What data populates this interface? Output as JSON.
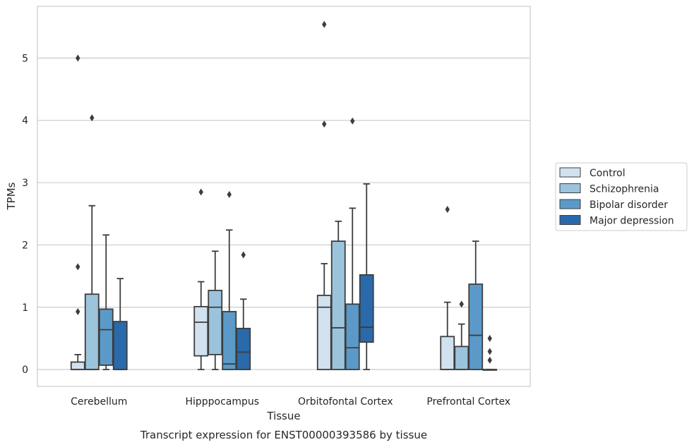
{
  "chart_data": {
    "type": "box",
    "xlabel": "Tissue",
    "ylabel": "TPMs",
    "caption": "Transcript expression for ENST00000393586 by tissue",
    "ylim": [
      -0.27,
      5.83
    ],
    "yticks": [
      0,
      1,
      2,
      3,
      4,
      5
    ],
    "grid": true,
    "legend_position": "right",
    "categories": [
      "Cerebellum",
      "Hipppocampus",
      "Orbitofontal Cortex",
      "Prefrontal Cortex"
    ],
    "series": [
      {
        "name": "Control",
        "color": "#d2e1f0",
        "boxes": [
          {
            "min": 0,
            "q1": 0,
            "median": 0,
            "q3": 0.12,
            "max": 0.24,
            "outliers": [
              0.93,
              1.65,
              5.0
            ]
          },
          {
            "min": 0,
            "q1": 0.22,
            "median": 0.76,
            "q3": 1.01,
            "max": 1.41,
            "outliers": [
              2.85
            ]
          },
          {
            "min": 0,
            "q1": 0,
            "median": 1.0,
            "q3": 1.19,
            "max": 1.7,
            "outliers": [
              3.94,
              5.54
            ]
          },
          {
            "min": 0,
            "q1": 0,
            "median": 0,
            "q3": 0.53,
            "max": 1.08,
            "outliers": [
              2.57
            ]
          }
        ]
      },
      {
        "name": "Schizophrenia",
        "color": "#9cc3dc",
        "boxes": [
          {
            "min": 0,
            "q1": 0,
            "median": 0,
            "q3": 1.21,
            "max": 2.63,
            "outliers": [
              4.04
            ]
          },
          {
            "min": 0,
            "q1": 0.24,
            "median": 1.0,
            "q3": 1.27,
            "max": 1.9,
            "outliers": []
          },
          {
            "min": 0,
            "q1": 0,
            "median": 0.67,
            "q3": 2.06,
            "max": 2.38,
            "outliers": []
          },
          {
            "min": 0,
            "q1": 0,
            "median": 0,
            "q3": 0.37,
            "max": 0.73,
            "outliers": [
              1.05
            ]
          }
        ]
      },
      {
        "name": "Bipolar disorder",
        "color": "#5b9ac8",
        "boxes": [
          {
            "min": 0,
            "q1": 0.07,
            "median": 0.64,
            "q3": 0.97,
            "max": 2.16,
            "outliers": []
          },
          {
            "min": 0,
            "q1": 0,
            "median": 0.09,
            "q3": 0.93,
            "max": 2.24,
            "outliers": [
              2.81
            ]
          },
          {
            "min": 0,
            "q1": 0,
            "median": 0.35,
            "q3": 1.05,
            "max": 2.59,
            "outliers": [
              3.99
            ]
          },
          {
            "min": 0,
            "q1": 0,
            "median": 0.55,
            "q3": 1.37,
            "max": 2.06,
            "outliers": []
          }
        ]
      },
      {
        "name": "Major depression",
        "color": "#2a6aaa",
        "boxes": [
          {
            "min": 0,
            "q1": 0,
            "median": 0,
            "q3": 0.77,
            "max": 1.46,
            "outliers": []
          },
          {
            "min": 0,
            "q1": 0,
            "median": 0.28,
            "q3": 0.66,
            "max": 1.13,
            "outliers": [
              1.84
            ]
          },
          {
            "min": 0,
            "q1": 0.44,
            "median": 0.68,
            "q3": 1.52,
            "max": 2.98,
            "outliers": []
          },
          {
            "min": 0,
            "q1": 0,
            "median": 0,
            "q3": 0,
            "max": 0,
            "outliers": [
              0.15,
              0.29,
              0.5
            ]
          }
        ]
      }
    ]
  }
}
